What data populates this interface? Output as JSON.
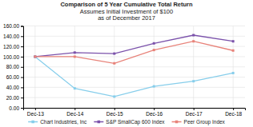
{
  "chart_data": {
    "type": "line",
    "title": "Comparison of 5 Year Cumulative Total Return",
    "subtitle": [
      "Assumes Initial Investment of $100",
      "as of December 2017"
    ],
    "categories": [
      "Dec-13",
      "Dec-14",
      "Dec-15",
      "Dec-16",
      "Dec-17",
      "Dec-18"
    ],
    "series": [
      {
        "name": "Chart Industries, Inc",
        "color": "#87CEEB",
        "values": [
          100.0,
          38.0,
          22.0,
          42.0,
          52.0,
          68.0
        ]
      },
      {
        "name": "S&P SmallCap 600 Index",
        "color": "#7B52AB",
        "values": [
          100.0,
          108.0,
          106.0,
          126.0,
          142.0,
          130.0
        ]
      },
      {
        "name": "Peer Group Index",
        "color": "#E8837A",
        "values": [
          100.0,
          100.0,
          87.0,
          113.0,
          130.0,
          112.0
        ]
      }
    ],
    "ylim": [
      0.0,
      160.0
    ],
    "yticks": [
      {
        "value": 0.0,
        "label": "0.00"
      },
      {
        "value": 20.0,
        "label": "20.00"
      },
      {
        "value": 40.0,
        "label": "40.00"
      },
      {
        "value": 60.0,
        "label": "60.00"
      },
      {
        "value": 80.0,
        "label": "80.00"
      },
      {
        "value": 100.0,
        "label": "100.00"
      },
      {
        "value": 120.0,
        "label": "120.00"
      },
      {
        "value": 140.0,
        "label": "140.00"
      },
      {
        "value": 160.0,
        "label": "160.00"
      }
    ],
    "grid": true,
    "legend": "bottom",
    "marker": "square"
  }
}
